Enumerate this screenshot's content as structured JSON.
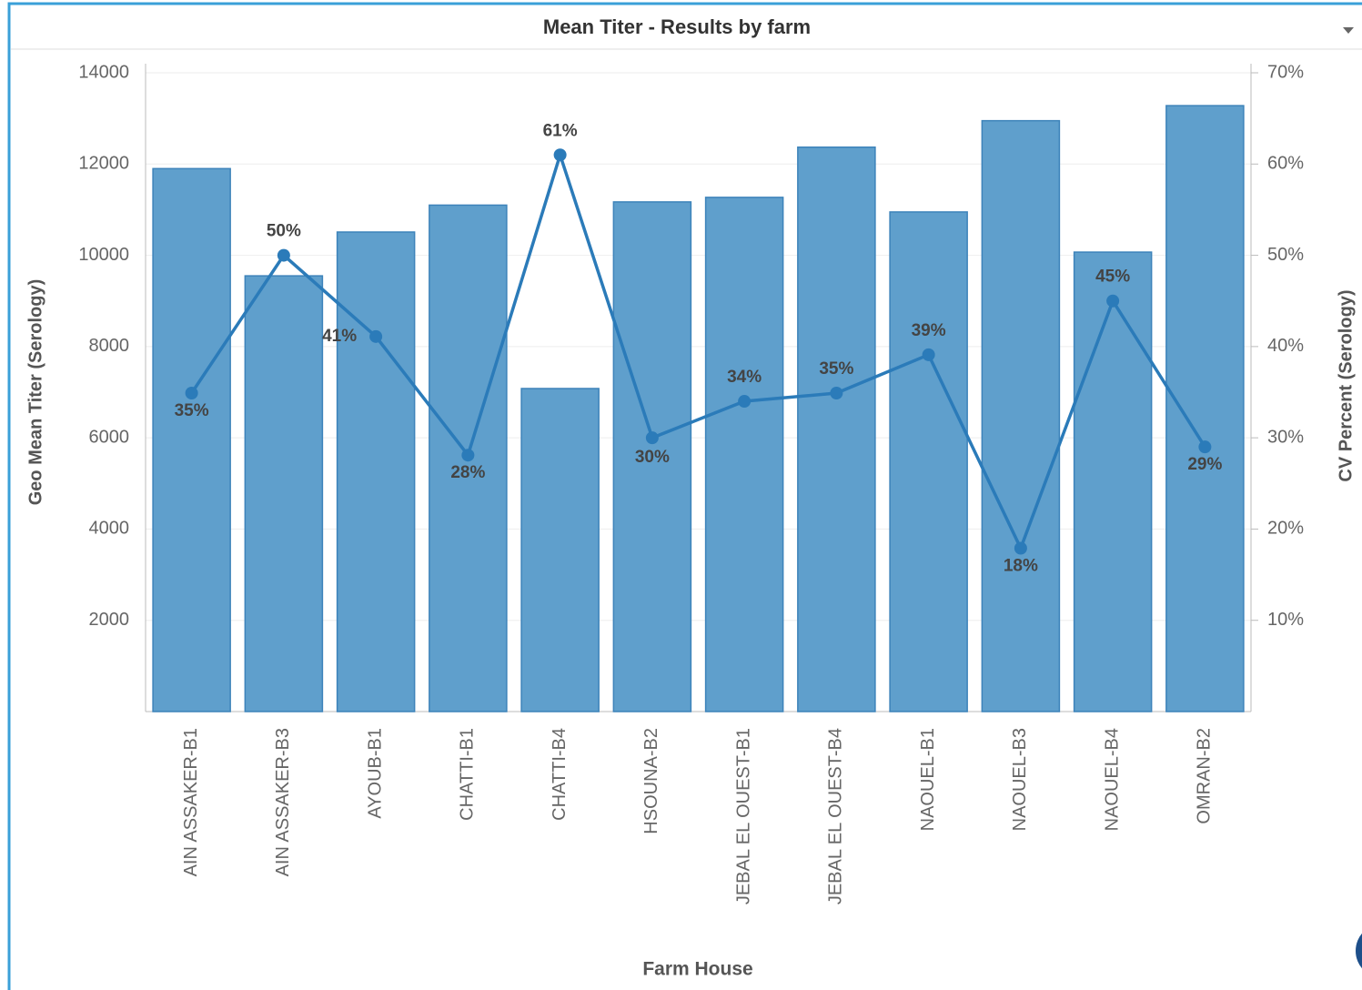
{
  "chart_data": {
    "type": "bar",
    "title": "Mean Titer - Results by farm",
    "x_label": "Farm House",
    "y_label": "Geo Mean Titer (Serology)",
    "y2_label": "CV Percent (Serology)",
    "categories": [
      "AIN ASSAKER-B1",
      "AIN ASSAKER-B3",
      "AYOUB-B1",
      "CHATTI-B1",
      "CHATTI-B4",
      "HSOUNA-B2",
      "JEBAL EL OUEST-B1",
      "JEBAL EL OUEST-B4",
      "NAOUEL-B1",
      "NAOUEL-B3",
      "NAOUEL-B4",
      "OMRAN-B2"
    ],
    "series": [
      {
        "type": "bar",
        "color": "#5f9fcc",
        "values": [
          11900,
          9550,
          10510,
          11100,
          7080,
          11170,
          11270,
          12370,
          10950,
          12950,
          10070,
          13280
        ]
      },
      {
        "type": "line",
        "axis": "y2",
        "color": "#2b7bb9",
        "values": [
          34.9,
          50.0,
          41.1,
          28.1,
          61.0,
          30.0,
          34.0,
          34.9,
          39.1,
          17.9,
          45.0,
          29.0
        ],
        "value_labels": [
          "35%",
          "50%",
          "41%",
          "28%",
          "61%",
          "30%",
          "34%",
          "35%",
          "39%",
          "18%",
          "45%",
          "29%"
        ]
      }
    ],
    "ylim": [
      0,
      14000
    ],
    "yticks": [
      2000,
      4000,
      6000,
      8000,
      10000,
      12000,
      14000
    ],
    "y2lim": [
      0,
      70
    ],
    "y2ticks": [
      {
        "value": 10,
        "label": "10%"
      },
      {
        "value": 20,
        "label": "20%"
      },
      {
        "value": 30,
        "label": "30%"
      },
      {
        "value": 40,
        "label": "40%"
      },
      {
        "value": 50,
        "label": "50%"
      },
      {
        "value": 60,
        "label": "60%"
      },
      {
        "value": 70,
        "label": "70%"
      }
    ],
    "grid": true
  }
}
